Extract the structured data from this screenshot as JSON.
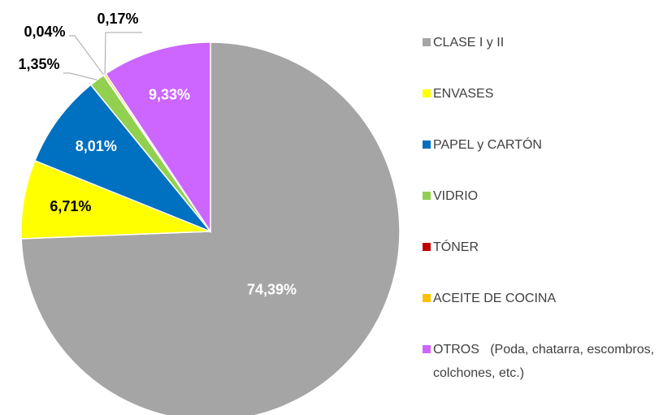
{
  "chart_data": {
    "type": "pie",
    "categories": [
      "CLASE I y II",
      "ENVASES",
      "PAPEL y CARTÓN",
      "VIDRIO",
      "TÓNER",
      "ACEITE DE COCINA",
      "OTROS   (Poda, chatarra, escombros, colchones, etc.)"
    ],
    "values": [
      74.39,
      6.71,
      8.01,
      1.35,
      0.04,
      0.17,
      9.33
    ],
    "value_labels": [
      "74,39%",
      "6,71%",
      "8,01%",
      "1,35%",
      "0,04%",
      "0,17%",
      "9,33%"
    ],
    "colors": [
      "#a5a5a5",
      "#ffff00",
      "#0070c0",
      "#92d050",
      "#c00000",
      "#ffc000",
      "#cc66ff"
    ],
    "legend": "right"
  }
}
